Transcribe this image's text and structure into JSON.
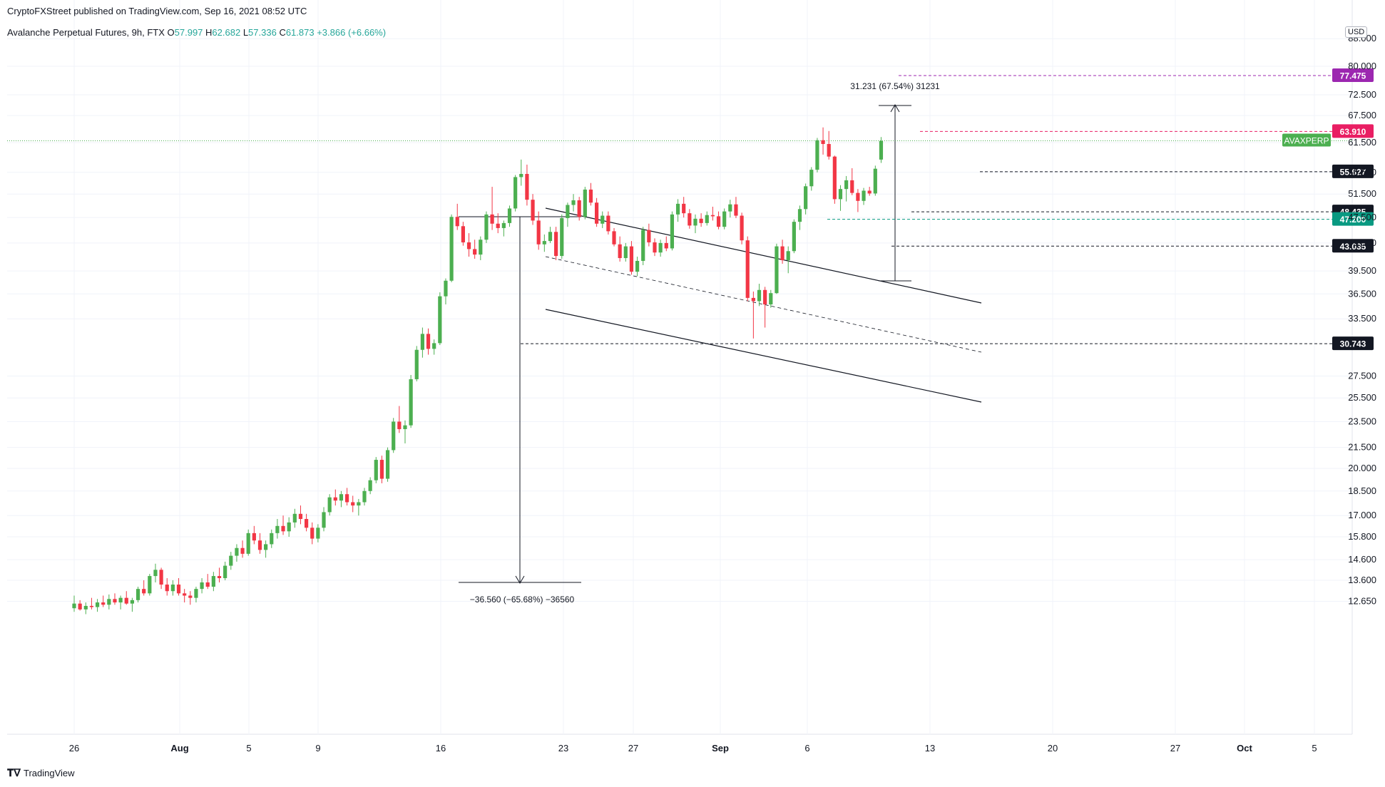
{
  "header": {
    "published": "CryptoFXStreet published on TradingView.com, Sep 16, 2021 08:52 UTC"
  },
  "symbol": {
    "name": "Avalanche Perpetual Futures, 9h, FTX",
    "o_label": "O",
    "o": "57.997",
    "h_label": "H",
    "h": "62.682",
    "l_label": "L",
    "l": "57.336",
    "c_label": "C",
    "c": "61.873",
    "change": "+3.866 (+6.66%)"
  },
  "currency": "USD",
  "footer": {
    "logo_icon": "tradingview-logo-icon",
    "brand": "TradingView"
  },
  "colors": {
    "up": "#4caf50",
    "down": "#f23645",
    "grid": "#f0f3fa",
    "axis": "#131722",
    "magenta": "#9c27b0",
    "pink": "#e91e63",
    "teal": "#089981",
    "dark": "#131722"
  },
  "chart_data": {
    "type": "candlestick",
    "scale": "log",
    "ylim": [
      12.0,
      100.0
    ],
    "y_ticks": [
      "88.000",
      "80.000",
      "72.500",
      "67.500",
      "61.500",
      "55.500",
      "51.500",
      "47.500",
      "43.500",
      "39.500",
      "36.500",
      "33.500",
      "27.500",
      "25.500",
      "23.500",
      "21.500",
      "20.000",
      "18.500",
      "17.000",
      "15.800",
      "14.600",
      "13.600",
      "12.650"
    ],
    "x_ticks": [
      "26",
      "Aug",
      "5",
      "9",
      "16",
      "23",
      "27",
      "Sep",
      "6",
      "13",
      "20",
      "27",
      "Oct",
      "5"
    ],
    "price_labels": [
      {
        "text": "77.475",
        "value": 77.475,
        "color": "#9c27b0",
        "style": "dashed"
      },
      {
        "text": "63.910",
        "value": 63.91,
        "color": "#e91e63",
        "style": "dashed"
      },
      {
        "text": "AVAXPERP",
        "value": 61.873,
        "color": "#4caf50",
        "style": "dotted"
      },
      {
        "text": "55.627",
        "value": 55.627,
        "color": "#131722",
        "style": "dashed"
      },
      {
        "text": "48.435",
        "value": 48.435,
        "color": "#131722",
        "style": "dashed"
      },
      {
        "text": "47.200",
        "value": 47.2,
        "color": "#089981",
        "style": "dashed"
      },
      {
        "text": "43.035",
        "value": 43.035,
        "color": "#131722",
        "style": "dashed"
      },
      {
        "text": "30.743",
        "value": 30.743,
        "color": "#131722",
        "style": "dashed"
      }
    ],
    "annotations": [
      {
        "text": "31.231 (67.54%) 31231"
      },
      {
        "text": "−36.560 (−65.68%) −36560"
      }
    ],
    "candles": [
      [
        12.35,
        12.9,
        12.2,
        12.55
      ],
      [
        12.55,
        12.7,
        12.25,
        12.3
      ],
      [
        12.3,
        12.6,
        12.1,
        12.45
      ],
      [
        12.45,
        12.8,
        12.3,
        12.4
      ],
      [
        12.4,
        12.75,
        12.2,
        12.6
      ],
      [
        12.6,
        12.9,
        12.4,
        12.5
      ],
      [
        12.5,
        12.95,
        12.3,
        12.75
      ],
      [
        12.75,
        13.0,
        12.5,
        12.6
      ],
      [
        12.6,
        12.9,
        12.3,
        12.8
      ],
      [
        12.8,
        13.1,
        12.5,
        12.55
      ],
      [
        12.55,
        12.8,
        12.2,
        12.7
      ],
      [
        12.7,
        13.3,
        12.6,
        13.2
      ],
      [
        13.2,
        13.6,
        12.9,
        13.0
      ],
      [
        13.0,
        13.9,
        12.9,
        13.8
      ],
      [
        13.8,
        14.4,
        13.5,
        14.1
      ],
      [
        14.1,
        14.2,
        13.2,
        13.4
      ],
      [
        13.4,
        13.7,
        12.9,
        13.1
      ],
      [
        13.1,
        13.6,
        12.9,
        13.4
      ],
      [
        13.4,
        13.7,
        12.9,
        13.0
      ],
      [
        13.0,
        13.2,
        12.6,
        12.9
      ],
      [
        12.9,
        13.1,
        12.5,
        12.8
      ],
      [
        12.8,
        13.3,
        12.6,
        13.2
      ],
      [
        13.2,
        13.7,
        13.0,
        13.5
      ],
      [
        13.5,
        13.9,
        13.2,
        13.3
      ],
      [
        13.3,
        14.0,
        13.1,
        13.8
      ],
      [
        13.8,
        14.2,
        13.5,
        13.7
      ],
      [
        13.7,
        14.5,
        13.6,
        14.3
      ],
      [
        14.3,
        15.0,
        14.1,
        14.8
      ],
      [
        14.8,
        15.4,
        14.5,
        15.2
      ],
      [
        15.2,
        15.6,
        14.7,
        14.9
      ],
      [
        14.9,
        16.2,
        14.8,
        16.0
      ],
      [
        16.0,
        16.4,
        15.4,
        15.6
      ],
      [
        15.6,
        16.0,
        14.9,
        15.1
      ],
      [
        15.1,
        15.6,
        14.7,
        15.4
      ],
      [
        15.4,
        16.2,
        15.2,
        16.0
      ],
      [
        16.0,
        16.8,
        15.7,
        16.4
      ],
      [
        16.4,
        17.0,
        15.9,
        16.1
      ],
      [
        16.1,
        16.9,
        15.8,
        16.6
      ],
      [
        16.6,
        17.4,
        16.3,
        17.1
      ],
      [
        17.1,
        17.6,
        16.5,
        16.8
      ],
      [
        16.8,
        17.1,
        16.1,
        16.3
      ],
      [
        16.3,
        16.6,
        15.4,
        15.7
      ],
      [
        15.7,
        16.5,
        15.5,
        16.3
      ],
      [
        16.3,
        17.5,
        16.1,
        17.2
      ],
      [
        17.2,
        18.3,
        17.0,
        18.1
      ],
      [
        18.1,
        18.6,
        17.6,
        17.9
      ],
      [
        17.9,
        18.5,
        17.5,
        18.3
      ],
      [
        18.3,
        18.7,
        17.6,
        17.8
      ],
      [
        17.8,
        18.2,
        17.2,
        17.6
      ],
      [
        17.6,
        18.0,
        17.0,
        17.8
      ],
      [
        17.8,
        18.7,
        17.6,
        18.5
      ],
      [
        18.5,
        19.4,
        18.3,
        19.2
      ],
      [
        19.2,
        20.8,
        19.0,
        20.6
      ],
      [
        20.6,
        20.9,
        19.0,
        19.3
      ],
      [
        19.3,
        21.5,
        19.1,
        21.3
      ],
      [
        21.3,
        23.8,
        21.1,
        23.5
      ],
      [
        23.5,
        24.8,
        22.6,
        22.9
      ],
      [
        22.9,
        23.6,
        21.8,
        23.2
      ],
      [
        23.2,
        27.6,
        23.0,
        27.2
      ],
      [
        27.2,
        30.5,
        27.0,
        30.1
      ],
      [
        30.1,
        32.5,
        29.3,
        31.8
      ],
      [
        31.8,
        32.4,
        29.6,
        30.2
      ],
      [
        30.2,
        31.2,
        29.6,
        30.8
      ],
      [
        30.8,
        36.7,
        30.6,
        36.2
      ],
      [
        36.2,
        38.5,
        35.2,
        38.2
      ],
      [
        38.2,
        48.0,
        38.0,
        47.6
      ],
      [
        47.6,
        49.8,
        45.5,
        46.1
      ],
      [
        46.1,
        46.8,
        43.1,
        43.6
      ],
      [
        43.6,
        45.0,
        41.5,
        42.6
      ],
      [
        42.6,
        44.0,
        41.2,
        41.8
      ],
      [
        41.8,
        44.5,
        41.0,
        44.0
      ],
      [
        44.0,
        48.5,
        43.5,
        48.0
      ],
      [
        48.0,
        52.8,
        45.5,
        46.5
      ],
      [
        46.5,
        48.2,
        45.0,
        45.8
      ],
      [
        45.8,
        47.0,
        44.5,
        46.6
      ],
      [
        46.6,
        49.5,
        46.0,
        49.0
      ],
      [
        49.0,
        55.0,
        48.5,
        54.6
      ],
      [
        54.6,
        58.0,
        53.0,
        55.2
      ],
      [
        55.2,
        57.0,
        49.5,
        50.5
      ],
      [
        50.5,
        51.5,
        46.3,
        47.0
      ],
      [
        47.0,
        48.5,
        42.5,
        43.3
      ],
      [
        43.3,
        44.8,
        42.2,
        43.8
      ],
      [
        43.8,
        46.0,
        43.5,
        45.2
      ],
      [
        45.2,
        46.0,
        41.0,
        41.6
      ],
      [
        41.6,
        48.0,
        41.2,
        47.4
      ],
      [
        47.4,
        50.0,
        46.0,
        49.6
      ],
      [
        49.6,
        51.5,
        48.5,
        50.4
      ],
      [
        50.4,
        51.0,
        47.0,
        47.6
      ],
      [
        47.6,
        52.8,
        47.2,
        52.3
      ],
      [
        52.3,
        53.5,
        49.5,
        50.0
      ],
      [
        50.0,
        50.8,
        46.0,
        46.5
      ],
      [
        46.5,
        48.5,
        45.8,
        47.8
      ],
      [
        47.8,
        48.5,
        44.8,
        45.3
      ],
      [
        45.3,
        45.8,
        43.0,
        43.3
      ],
      [
        43.3,
        44.5,
        40.8,
        41.3
      ],
      [
        41.3,
        43.5,
        40.8,
        43.0
      ],
      [
        43.0,
        43.8,
        39.0,
        39.4
      ],
      [
        39.4,
        41.5,
        38.8,
        40.9
      ],
      [
        40.9,
        46.0,
        40.3,
        45.5
      ],
      [
        45.5,
        46.5,
        43.0,
        43.6
      ],
      [
        43.6,
        44.2,
        41.6,
        42.1
      ],
      [
        42.1,
        44.0,
        41.5,
        43.5
      ],
      [
        43.5,
        44.5,
        42.3,
        42.7
      ],
      [
        42.7,
        48.5,
        42.4,
        48.0
      ],
      [
        48.0,
        50.6,
        46.8,
        49.8
      ],
      [
        49.8,
        51.0,
        47.5,
        48.2
      ],
      [
        48.2,
        48.9,
        45.7,
        46.2
      ],
      [
        46.2,
        48.0,
        45.0,
        47.3
      ],
      [
        47.3,
        48.2,
        46.0,
        46.6
      ],
      [
        46.6,
        48.5,
        46.2,
        47.9
      ],
      [
        47.9,
        49.3,
        47.0,
        47.7
      ],
      [
        47.7,
        48.5,
        45.6,
        46.0
      ],
      [
        46.0,
        49.0,
        45.6,
        48.5
      ],
      [
        48.5,
        50.5,
        47.5,
        49.7
      ],
      [
        49.7,
        51.0,
        47.4,
        47.8
      ],
      [
        47.8,
        48.3,
        43.3,
        43.9
      ],
      [
        43.9,
        44.5,
        35.6,
        36.0
      ],
      [
        36.0,
        36.8,
        31.3,
        35.6
      ],
      [
        35.6,
        37.8,
        35.0,
        37.0
      ],
      [
        37.0,
        37.4,
        32.5,
        35.2
      ],
      [
        35.2,
        37.0,
        34.8,
        36.6
      ],
      [
        36.6,
        43.4,
        36.5,
        43.0
      ],
      [
        43.0,
        44.0,
        40.5,
        41.0
      ],
      [
        41.0,
        43.0,
        39.2,
        42.3
      ],
      [
        42.3,
        47.2,
        42.0,
        46.8
      ],
      [
        46.8,
        49.5,
        45.5,
        48.9
      ],
      [
        48.9,
        53.4,
        48.0,
        52.9
      ],
      [
        52.9,
        56.5,
        52.1,
        56.0
      ],
      [
        56.0,
        62.5,
        55.5,
        62.0
      ],
      [
        62.0,
        64.8,
        59.0,
        61.2
      ],
      [
        61.2,
        64.0,
        58.0,
        58.6
      ],
      [
        58.6,
        58.8,
        49.8,
        50.6
      ],
      [
        50.6,
        53.1,
        48.6,
        52.4
      ],
      [
        52.4,
        54.8,
        50.2,
        54.0
      ],
      [
        54.0,
        56.3,
        51.3,
        51.7
      ],
      [
        51.7,
        52.4,
        48.4,
        50.3
      ],
      [
        50.3,
        52.6,
        49.6,
        52.1
      ],
      [
        52.1,
        52.8,
        51.2,
        51.6
      ],
      [
        51.6,
        56.8,
        51.2,
        56.2
      ],
      [
        57.997,
        62.682,
        57.336,
        61.873
      ]
    ]
  }
}
